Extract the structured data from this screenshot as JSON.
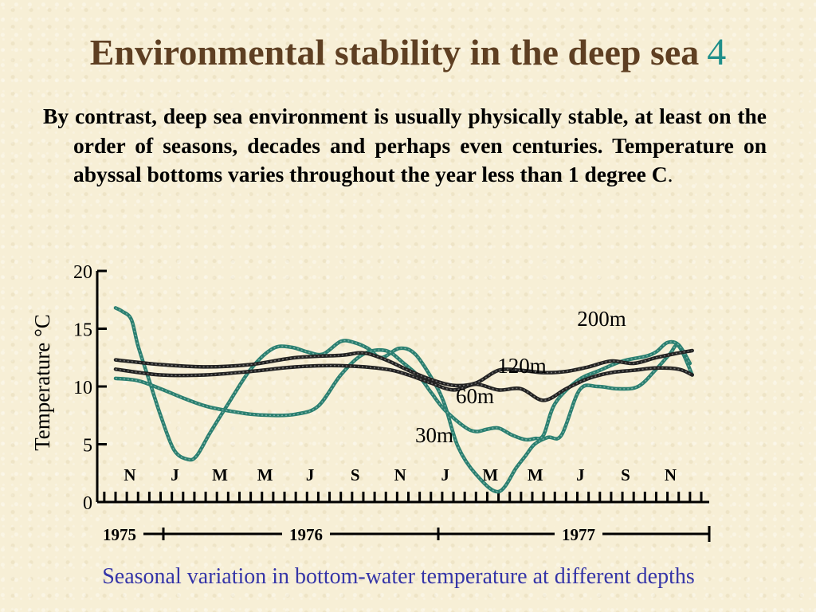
{
  "slide": {
    "title": "Environmental stability in the deep sea",
    "title_number": "4",
    "bullet_bold": "By contrast, deep sea environment is usually physically stable, at least on the order of seasons, decades and perhaps even centuries. Temperature on abyssal bottoms varies throughout the year less than 1 degree C",
    "bullet_end": ".",
    "caption": "Seasonal variation in bottom-water temperature at different depths"
  },
  "colors": {
    "title": "#5e3f22",
    "title_number": "#1f8f8a",
    "caption": "#3535a8",
    "teal_series": "#2a7f70",
    "dark_series": "#222222",
    "background": "#f7efd6"
  },
  "chart_data": {
    "type": "line",
    "ylabel": "Temperature °C",
    "ylim": [
      0,
      20
    ],
    "yticks": [
      "0",
      "5",
      "10",
      "15",
      "20"
    ],
    "xlim": [
      0,
      26
    ],
    "month_ticks": [
      "N",
      "J",
      "M",
      "M",
      "J",
      "S",
      "N",
      "J",
      "M",
      "M",
      "J",
      "S",
      "N"
    ],
    "years": [
      "1975",
      "1976",
      "1977"
    ],
    "series": [
      {
        "name": "30m",
        "style": "teal",
        "x": [
          0,
          0.3,
          0.7,
          1.0,
          1.5,
          2.0,
          2.6,
          3.2,
          3.6,
          4.2,
          5.0,
          6.0,
          7.0,
          7.8,
          8.5,
          9.2,
          10.0,
          10.6,
          11.2,
          11.8,
          12.6,
          13.3,
          14.1,
          14.6,
          15.2,
          16.0,
          17.0,
          17.8,
          18.2,
          18.6,
          19.2,
          19.8,
          20.6,
          21.4,
          22.3,
          23.2,
          24.0,
          24.6,
          25.0,
          25.6
        ],
        "y": [
          16.8,
          16.5,
          15.8,
          13.5,
          10.5,
          7.5,
          4.5,
          3.7,
          4.0,
          6.0,
          8.5,
          11.5,
          13.3,
          13.4,
          13.0,
          12.8,
          13.9,
          13.8,
          13.3,
          12.5,
          13.3,
          12.8,
          10.5,
          8.5,
          4.8,
          2.4,
          0.9,
          3.0,
          4.0,
          5.0,
          5.6,
          5.8,
          9.7,
          10.0,
          9.8,
          10.0,
          11.5,
          12.8,
          13.5,
          11.0
        ]
      },
      {
        "name": "60m",
        "style": "teal",
        "x": [
          0,
          1.0,
          2.0,
          3.0,
          4.0,
          5.0,
          6.0,
          7.0,
          8.0,
          9.0,
          10.0,
          11.0,
          12.0,
          12.8,
          13.5,
          14.0,
          14.6,
          15.5,
          16.0,
          16.5,
          17.0,
          17.6,
          18.2,
          18.6,
          19.0,
          19.5,
          20.5,
          21.5,
          22.5,
          23.5,
          24.0,
          24.5,
          25.0,
          25.5
        ],
        "y": [
          10.7,
          10.5,
          9.8,
          9.0,
          8.3,
          7.9,
          7.6,
          7.5,
          7.6,
          8.3,
          11.0,
          12.8,
          13.1,
          12.0,
          10.8,
          9.5,
          8.0,
          6.5,
          6.1,
          6.3,
          6.4,
          5.8,
          5.4,
          5.5,
          5.8,
          8.5,
          10.5,
          11.4,
          12.2,
          12.6,
          13.0,
          13.8,
          13.6,
          12.0
        ]
      },
      {
        "name": "120m",
        "style": "dark",
        "x": [
          0,
          2,
          4,
          6,
          8,
          10,
          12,
          13,
          14,
          15,
          16,
          17,
          18,
          19,
          20,
          21,
          22,
          23,
          24,
          25,
          25.6
        ],
        "y": [
          11.5,
          11.0,
          11.0,
          11.3,
          11.7,
          11.8,
          11.5,
          11.0,
          10.3,
          9.7,
          10.2,
          9.7,
          9.8,
          8.8,
          9.8,
          10.7,
          11.2,
          11.4,
          11.6,
          11.5,
          11.0
        ]
      },
      {
        "name": "200m",
        "style": "dark",
        "x": [
          0,
          2,
          4,
          6,
          8,
          10,
          11,
          12,
          13,
          14,
          15,
          16,
          17,
          18,
          19,
          20,
          21,
          22,
          23,
          24,
          25,
          25.6
        ],
        "y": [
          12.3,
          11.9,
          11.7,
          11.9,
          12.5,
          12.7,
          12.9,
          12.3,
          11.4,
          10.6,
          10.1,
          10.3,
          11.4,
          11.4,
          11.2,
          11.3,
          11.7,
          12.2,
          12.0,
          12.5,
          12.9,
          13.1
        ]
      }
    ]
  }
}
